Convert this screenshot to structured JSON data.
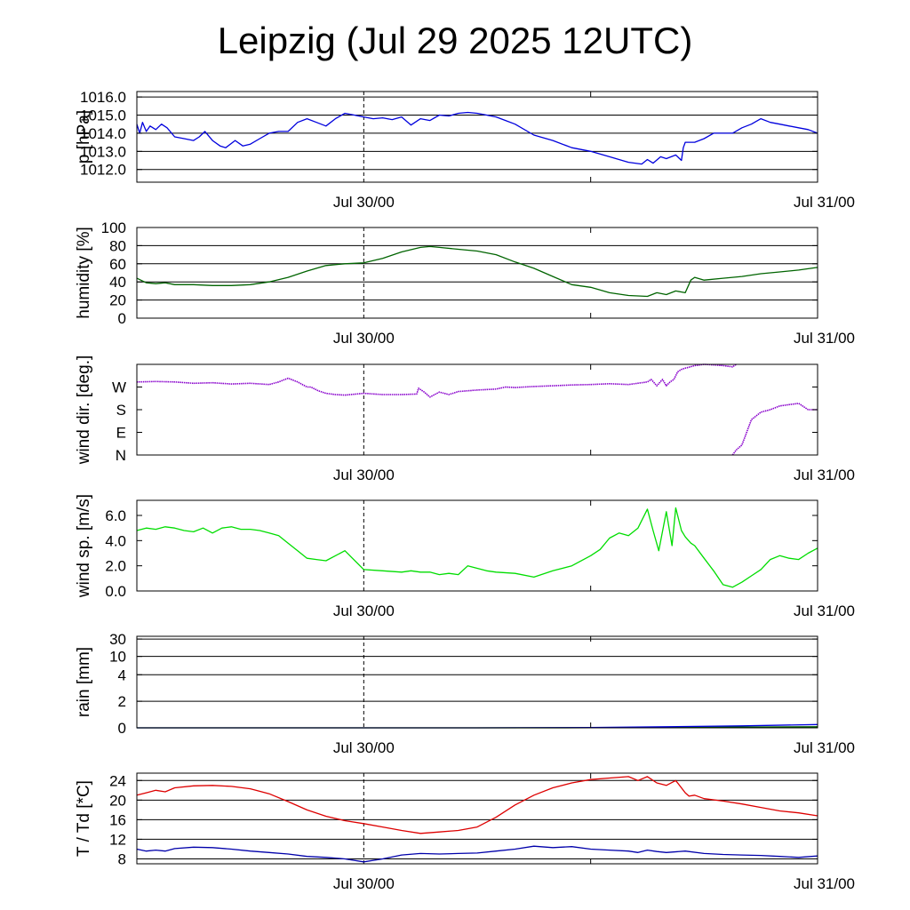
{
  "title": "Leipzig (Jul 29 2025 12UTC)",
  "x_axis": {
    "range_hours": [
      0,
      36
    ],
    "tick_labels": [
      {
        "label": "Jul 30/00",
        "hour": 12
      },
      {
        "label": "Jul 31/00",
        "hour": 36
      }
    ],
    "minor_tick_hours": [
      24
    ],
    "dashed_marker_hour": 12
  },
  "chart_data": [
    {
      "type": "line",
      "id": "pressure",
      "ylabel": "p [hPa]",
      "ylim": [
        1011.3,
        1016.3
      ],
      "ytick_labels": [
        "1016.0",
        "1015.0",
        "1014.0",
        "1013.0",
        "1012.0"
      ],
      "grid_y": [
        1016,
        1015,
        1014,
        1013,
        1012
      ],
      "series": [
        {
          "color": "#0000dd",
          "x": [
            0,
            0.15,
            0.3,
            0.5,
            0.7,
            1,
            1.3,
            1.6,
            2,
            2.5,
            3,
            3.3,
            3.6,
            4,
            4.4,
            4.7,
            5.2,
            5.6,
            6,
            6.5,
            7,
            7.5,
            8,
            8.5,
            9,
            9.5,
            10,
            10.5,
            11,
            11.5,
            12,
            12.5,
            13,
            13.5,
            14,
            14.5,
            15,
            15.5,
            16,
            16.5,
            17,
            17.5,
            18,
            18.5,
            19,
            19.5,
            20,
            21,
            22,
            23,
            24,
            25,
            26,
            26.7,
            27,
            27.3,
            27.7,
            28,
            28.5,
            28.8,
            28.9,
            29,
            29.5,
            30,
            30.5,
            31,
            31.5,
            32,
            32.5,
            33,
            33.5,
            34,
            34.5,
            35,
            35.5,
            36
          ],
          "y": [
            1014.5,
            1014.0,
            1014.6,
            1014.1,
            1014.4,
            1014.2,
            1014.5,
            1014.3,
            1013.8,
            1013.7,
            1013.6,
            1013.8,
            1014.1,
            1013.6,
            1013.3,
            1013.2,
            1013.6,
            1013.3,
            1013.4,
            1013.7,
            1014.0,
            1014.1,
            1014.1,
            1014.6,
            1014.8,
            1014.6,
            1014.4,
            1014.8,
            1015.1,
            1015.0,
            1014.9,
            1014.8,
            1014.85,
            1014.75,
            1014.9,
            1014.45,
            1014.8,
            1014.7,
            1015.0,
            1014.95,
            1015.1,
            1015.15,
            1015.1,
            1015.0,
            1014.9,
            1014.7,
            1014.5,
            1013.9,
            1013.6,
            1013.2,
            1013.0,
            1012.7,
            1012.4,
            1012.3,
            1012.55,
            1012.35,
            1012.7,
            1012.6,
            1012.8,
            1012.5,
            1013.2,
            1013.5,
            1013.5,
            1013.7,
            1014.0,
            1014.0,
            1014.0,
            1014.3,
            1014.5,
            1014.8,
            1014.6,
            1014.5,
            1014.4,
            1014.3,
            1014.2,
            1014.0
          ]
        }
      ]
    },
    {
      "type": "line",
      "id": "humidity",
      "ylabel": "humidity [%]",
      "ylim": [
        0,
        100
      ],
      "ytick_labels": [
        "100",
        "80",
        "60",
        "40",
        "20",
        "0"
      ],
      "grid_y": [
        80,
        60,
        40,
        20
      ],
      "series": [
        {
          "color": "#006400",
          "x": [
            0,
            0.5,
            1,
            1.5,
            2,
            3,
            4,
            5,
            6,
            7,
            8,
            9,
            10,
            11,
            12,
            13,
            14,
            15,
            15.5,
            16,
            17,
            18,
            19,
            20,
            21,
            22,
            23,
            24,
            25,
            26,
            27,
            27.5,
            28,
            28.5,
            29,
            29.3,
            29.5,
            30,
            31,
            32,
            33,
            34,
            35,
            36
          ],
          "y": [
            44,
            39,
            38,
            39,
            37,
            37,
            36,
            36,
            37,
            40,
            45,
            52,
            58,
            60,
            61,
            66,
            73,
            78,
            79,
            78,
            76,
            74,
            70,
            62,
            55,
            46,
            37,
            34,
            28,
            25,
            24,
            28,
            26,
            30,
            28,
            42,
            45,
            42,
            44,
            46,
            49,
            51,
            53,
            56
          ]
        }
      ]
    },
    {
      "type": "scatter",
      "id": "wind_direction",
      "ylabel": "wind dir. [deg.]",
      "ylim": [
        0,
        360
      ],
      "ytick_labels": [
        "W",
        "S",
        "E",
        "N"
      ],
      "ytick_values": [
        270,
        180,
        90,
        0
      ],
      "series": [
        {
          "color": "#8800cc",
          "segments": [
            {
              "x": [
                0,
                1,
                2,
                3,
                4,
                5,
                6,
                7,
                7.5,
                8,
                8.5,
                9,
                9.2,
                9.6,
                10,
                10.5,
                11,
                12,
                13,
                14,
                14.8,
                14.9,
                15.2,
                15.5,
                16,
                16.5,
                17,
                18,
                19,
                19.5,
                20,
                21,
                22,
                23,
                24,
                25,
                26,
                27,
                27.2,
                27.5,
                27.8,
                28,
                28.2,
                28.4,
                28.6,
                28.8,
                29,
                29.5,
                30,
                30.5,
                31,
                31.5,
                31.7
              ],
              "y": [
                290,
                292,
                290,
                285,
                287,
                282,
                285,
                280,
                290,
                305,
                290,
                270,
                270,
                255,
                245,
                240,
                238,
                245,
                240,
                240,
                242,
                265,
                250,
                230,
                250,
                240,
                252,
                258,
                262,
                270,
                268,
                272,
                275,
                278,
                280,
                283,
                280,
                290,
                300,
                275,
                300,
                275,
                290,
                300,
                330,
                340,
                345,
                355,
                360,
                358,
                355,
                350,
                360
              ]
            },
            {
              "x": [
                31.5,
                31.7,
                32,
                32.5,
                33,
                33.5,
                34,
                34.5,
                35,
                35.5,
                36
              ],
              "y": [
                0,
                20,
                40,
                140,
                170,
                180,
                195,
                200,
                205,
                180,
                180
              ]
            }
          ]
        }
      ]
    },
    {
      "type": "line",
      "id": "wind_speed",
      "ylabel": "wind sp. [m/s]",
      "ylim": [
        0,
        7.2
      ],
      "ytick_labels": [
        "6.0",
        "4.0",
        "2.0",
        "0.0"
      ],
      "ytick_values": [
        6,
        4,
        2,
        0
      ],
      "series": [
        {
          "color": "#00dd00",
          "x": [
            0,
            0.5,
            1,
            1.5,
            2,
            2.5,
            3,
            3.5,
            4,
            4.5,
            5,
            5.5,
            6,
            6.5,
            7,
            7.5,
            8,
            8.5,
            9,
            9.5,
            10,
            11,
            12,
            13,
            14,
            14.5,
            15,
            15.5,
            16,
            16.5,
            17,
            17.5,
            18,
            18.5,
            19,
            20,
            21,
            22,
            23,
            24,
            24.5,
            25,
            25.5,
            26,
            26.5,
            27,
            27.3,
            27.6,
            28,
            28.3,
            28.5,
            28.8,
            29,
            29.3,
            29.5,
            30,
            30.5,
            31,
            31.5,
            32,
            32.5,
            33,
            33.5,
            34,
            34.5,
            35,
            35.5,
            36
          ],
          "y": [
            4.8,
            5.0,
            4.9,
            5.1,
            5.0,
            4.8,
            4.7,
            5.0,
            4.6,
            5.0,
            5.1,
            4.9,
            4.9,
            4.8,
            4.6,
            4.4,
            3.8,
            3.2,
            2.6,
            2.5,
            2.4,
            3.2,
            1.7,
            1.6,
            1.5,
            1.6,
            1.5,
            1.5,
            1.3,
            1.4,
            1.3,
            2.0,
            1.8,
            1.6,
            1.5,
            1.4,
            1.1,
            1.6,
            2.0,
            2.8,
            3.3,
            4.2,
            4.6,
            4.4,
            5.0,
            6.5,
            4.8,
            3.2,
            6.3,
            3.6,
            6.6,
            4.8,
            4.3,
            3.8,
            3.6,
            2.6,
            1.6,
            0.5,
            0.3,
            0.7,
            1.2,
            1.7,
            2.5,
            2.8,
            2.6,
            2.5,
            3.0,
            3.4
          ]
        }
      ]
    },
    {
      "type": "line",
      "id": "rain",
      "ylabel": "rain [mm]",
      "ytick_labels": [
        "30",
        "10",
        "4",
        "2",
        "0"
      ],
      "ytick_values": [
        30,
        10,
        4,
        2,
        0
      ],
      "grid_y": [
        30,
        10,
        4,
        2
      ],
      "series": [
        {
          "color": "#006400",
          "x": [
            0,
            18,
            24,
            30,
            36
          ],
          "y": [
            0,
            0,
            0.01,
            0.05,
            0.08
          ]
        },
        {
          "color": "#0000dd",
          "x": [
            0,
            18,
            24,
            28,
            32,
            36
          ],
          "y": [
            0,
            0,
            0.02,
            0.08,
            0.15,
            0.25
          ]
        }
      ]
    },
    {
      "type": "line",
      "id": "temperature_dewpoint",
      "ylabel": "T / Td [*C]",
      "ylim": [
        7,
        25.5
      ],
      "ytick_labels": [
        "24",
        "20",
        "16",
        "12",
        "8"
      ],
      "ytick_values": [
        24,
        20,
        16,
        12,
        8
      ],
      "grid_y": [
        24,
        20,
        16,
        12,
        8
      ],
      "series": [
        {
          "color": "#dd0000",
          "x": [
            0,
            0.5,
            1,
            1.5,
            2,
            3,
            4,
            5,
            6,
            7,
            8,
            9,
            10,
            11,
            12,
            13,
            14,
            15,
            16,
            17,
            18,
            19,
            20,
            21,
            22,
            23,
            24,
            25,
            26,
            26.5,
            27,
            27.5,
            28,
            28.5,
            29,
            29.2,
            29.5,
            30,
            31,
            32,
            33,
            34,
            35,
            36
          ],
          "y": [
            21.0,
            21.5,
            22.0,
            21.7,
            22.5,
            22.9,
            23.0,
            22.8,
            22.3,
            21.3,
            19.7,
            18.0,
            16.7,
            15.8,
            15.2,
            14.5,
            13.8,
            13.2,
            13.5,
            13.8,
            14.5,
            16.5,
            19.0,
            21.0,
            22.5,
            23.5,
            24.2,
            24.5,
            24.8,
            24.0,
            24.8,
            23.5,
            23.0,
            24.0,
            21.5,
            20.8,
            21.0,
            20.3,
            19.8,
            19.2,
            18.5,
            17.8,
            17.4,
            16.8
          ]
        },
        {
          "color": "#0000aa",
          "x": [
            0,
            0.5,
            1,
            1.5,
            2,
            3,
            4,
            5,
            6,
            7,
            8,
            9,
            10,
            11,
            12,
            13,
            14,
            15,
            16,
            17,
            18,
            19,
            20,
            21,
            22,
            23,
            24,
            25,
            26,
            26.5,
            27,
            27.5,
            28,
            29,
            30,
            31,
            32,
            33,
            34,
            35,
            36
          ],
          "y": [
            10.0,
            9.6,
            9.8,
            9.6,
            10.1,
            10.4,
            10.3,
            10.0,
            9.6,
            9.3,
            9.0,
            8.5,
            8.3,
            8.0,
            7.4,
            8.0,
            8.8,
            9.1,
            9.0,
            9.1,
            9.2,
            9.6,
            10.0,
            10.6,
            10.3,
            10.5,
            10.0,
            9.8,
            9.6,
            9.3,
            9.8,
            9.5,
            9.3,
            9.6,
            9.1,
            8.9,
            8.8,
            8.7,
            8.5,
            8.3,
            8.6
          ]
        }
      ]
    }
  ]
}
